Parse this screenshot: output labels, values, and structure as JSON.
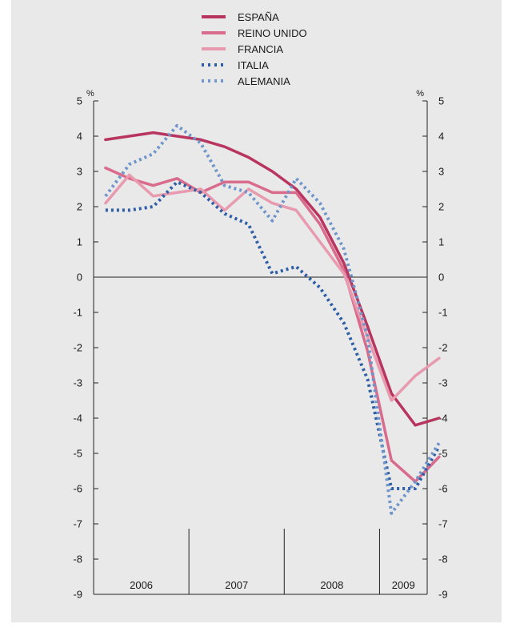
{
  "chart_data": {
    "type": "line",
    "title": "",
    "xlabel": "",
    "ylabel": "",
    "unit_left": "%",
    "unit_right": "%",
    "ylim": [
      -9,
      5
    ],
    "yticks": [
      5,
      4,
      3,
      2,
      1,
      0,
      -1,
      -2,
      -3,
      -4,
      -5,
      -6,
      -7,
      -8,
      -9
    ],
    "ytick_labels": [
      "5",
      "4",
      "3",
      "2",
      "1",
      "0",
      "-1",
      "-2",
      "-3",
      "-4",
      "-5",
      "-6",
      "-7",
      "-8",
      "-9"
    ],
    "xlim": [
      2006.0,
      2009.5
    ],
    "year_labels": [
      "2006",
      "2007",
      "2008",
      "2009"
    ],
    "grid": false,
    "zero_line": true,
    "legend_position": "top-center",
    "x": [
      "2006-Q1",
      "2006-Q2",
      "2006-Q3",
      "2006-Q4",
      "2007-Q1",
      "2007-Q2",
      "2007-Q3",
      "2007-Q4",
      "2008-Q1",
      "2008-Q2",
      "2008-Q3",
      "2008-Q4",
      "2009-Q1",
      "2009-Q2",
      "2009-Q3"
    ],
    "series": [
      {
        "name": "ESPAÑA",
        "color": "#b8355f",
        "dash": "solid",
        "values": [
          3.9,
          4.0,
          4.1,
          4.0,
          3.9,
          3.7,
          3.4,
          3.0,
          2.5,
          1.7,
          0.4,
          -1.4,
          -3.3,
          -4.2,
          -4.0
        ]
      },
      {
        "name": "REINO UNIDO",
        "color": "#d96b8c",
        "dash": "solid",
        "values": [
          3.1,
          2.8,
          2.6,
          2.8,
          2.4,
          2.7,
          2.7,
          2.4,
          2.4,
          1.5,
          0.2,
          -2.1,
          -5.2,
          -5.8,
          -5.1
        ]
      },
      {
        "name": "FRANCIA",
        "color": "#e89aaf",
        "dash": "solid",
        "values": [
          2.1,
          2.9,
          2.3,
          2.4,
          2.5,
          1.9,
          2.5,
          2.1,
          1.9,
          1.0,
          0.1,
          -1.7,
          -3.5,
          -2.8,
          -2.3
        ]
      },
      {
        "name": "ITALIA",
        "color": "#2e5ea6",
        "dash": "dotted",
        "values": [
          1.9,
          1.9,
          2.0,
          2.7,
          2.4,
          1.8,
          1.5,
          0.1,
          0.3,
          -0.3,
          -1.3,
          -2.9,
          -6.0,
          -6.0,
          -4.8
        ]
      },
      {
        "name": "ALEMANIA",
        "color": "#6f95c9",
        "dash": "dotted",
        "values": [
          2.3,
          3.2,
          3.5,
          4.3,
          3.8,
          2.6,
          2.4,
          1.6,
          2.8,
          2.1,
          0.8,
          -1.7,
          -6.7,
          -5.8,
          -4.7
        ]
      }
    ]
  }
}
